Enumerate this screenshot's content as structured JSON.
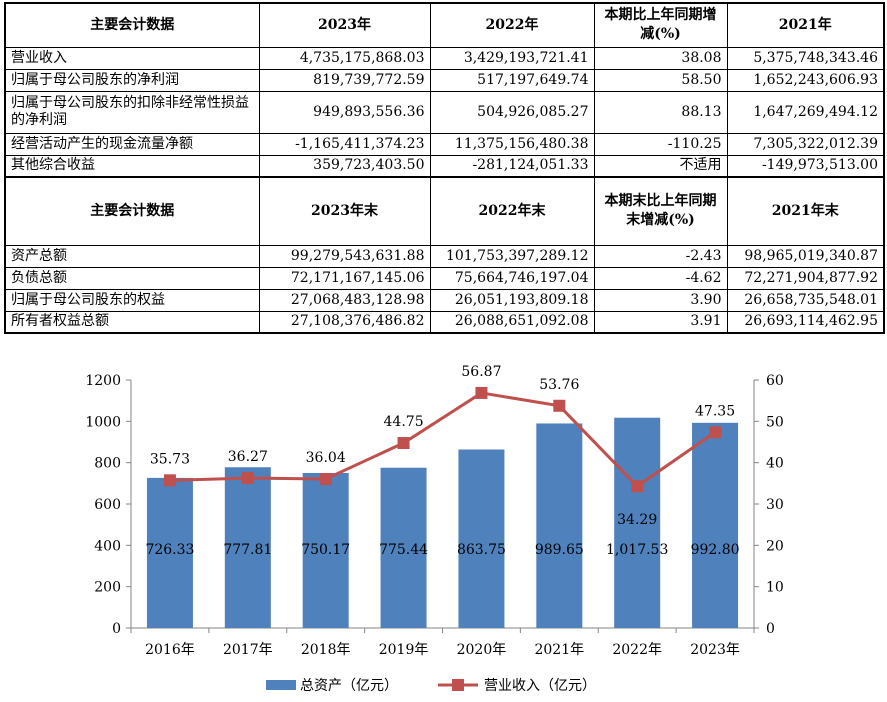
{
  "income_table": {
    "headers": [
      "主要会计数据",
      "2023年",
      "2022年",
      "本期比上年同期增减(%)",
      "2021年"
    ],
    "rows": [
      [
        "营业收入",
        "4,735,175,868.03",
        "3,429,193,721.41",
        "38.08",
        "5,375,748,343.46"
      ],
      [
        "归属于母公司股东的净利润",
        "819,739,772.59",
        "517,197,649.74",
        "58.50",
        "1,652,243,606.93"
      ],
      [
        "归属于母公司股东的扣除非经常性损益的净利润",
        "949,893,556.36",
        "504,926,085.27",
        "88.13",
        "1,647,269,494.12"
      ],
      [
        "经营活动产生的现金流量净额",
        "-1,165,411,374.23",
        "11,375,156,480.38",
        "-110.25",
        "7,305,322,012.39"
      ],
      [
        "其他综合收益",
        "359,723,403.50",
        "-281,124,051.33",
        "不适用",
        "-149,973,513.00"
      ]
    ]
  },
  "balance_table": {
    "headers": [
      "主要会计数据",
      "2023年末",
      "2022年末",
      "本期末比上年同期末增减(%)",
      "2021年末"
    ],
    "rows": [
      [
        "资产总额",
        "99,279,543,631.88",
        "101,753,397,289.12",
        "-2.43",
        "98,965,019,340.87"
      ],
      [
        "负债总额",
        "72,171,167,145.06",
        "75,664,746,197.04",
        "-4.62",
        "72,271,904,877.92"
      ],
      [
        "归属于母公司股东的权益",
        "27,068,483,128.98",
        "26,051,193,809.18",
        "3.90",
        "26,658,735,548.01"
      ],
      [
        "所有者权益总额",
        "27,108,376,486.82",
        "26,088,651,092.08",
        "3.91",
        "26,693,114,462.95"
      ]
    ]
  },
  "chart_data": {
    "type": "bar",
    "categories": [
      "2016年",
      "2017年",
      "2018年",
      "2019年",
      "2020年",
      "2021年",
      "2022年",
      "2023年"
    ],
    "series": [
      {
        "name": "总资产（亿元）",
        "type": "bar",
        "axis": "left",
        "values": [
          726.33,
          777.81,
          750.17,
          775.44,
          863.75,
          989.65,
          1017.53,
          992.8
        ],
        "labels": [
          "726.33",
          "777.81",
          "750.17",
          "775.44",
          "863.75",
          "989.65",
          "1,017.53",
          "992.80"
        ]
      },
      {
        "name": "营业收入（亿元）",
        "type": "line",
        "axis": "right",
        "values": [
          35.73,
          36.27,
          36.04,
          44.75,
          56.87,
          53.76,
          34.29,
          47.35
        ],
        "labels": [
          "35.73",
          "36.27",
          "36.04",
          "44.75",
          "56.87",
          "53.76",
          "34.29",
          "47.35"
        ]
      }
    ],
    "ylim_left": [
      0,
      1200
    ],
    "ylim_right": [
      0,
      60
    ],
    "left_ticks": [
      "0",
      "200",
      "400",
      "600",
      "800",
      "1000",
      "1200"
    ],
    "right_ticks": [
      "0",
      "10",
      "20",
      "30",
      "40",
      "50",
      "60"
    ],
    "legend": "bottom",
    "colors": {
      "bar": "#4f81bd",
      "line": "#c0504d"
    }
  }
}
